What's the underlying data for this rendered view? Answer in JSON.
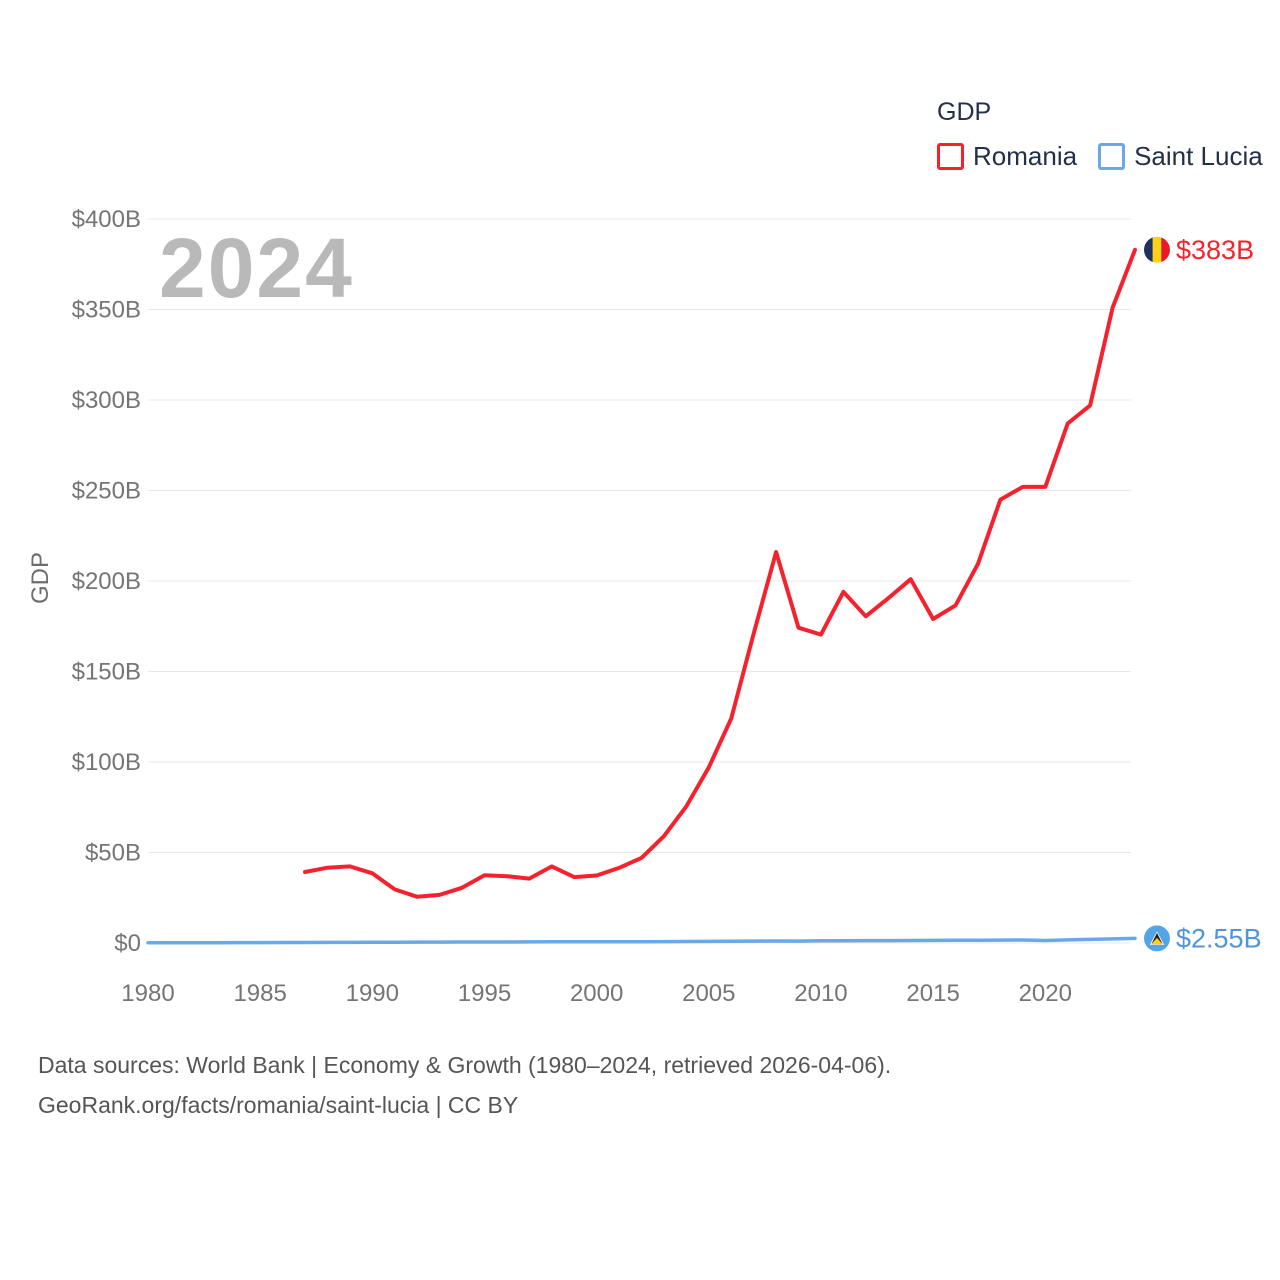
{
  "legend": {
    "title": "GDP",
    "series": [
      {
        "label": "Romania",
        "color": "#f5222d"
      },
      {
        "label": "Saint Lucia",
        "color": "#6ba9e6"
      }
    ]
  },
  "watermark": {
    "text": "2024"
  },
  "footer": {
    "line1": "Data sources: World Bank | Economy & Growth (1980–2024, retrieved 2026-04-06).",
    "line2": "GeoRank.org/facts/romania/saint-lucia | CC BY"
  },
  "colors": {
    "grid": "#e8e8e8",
    "tick_text": "#757575",
    "romania_line": "#f5222d",
    "romania_label": "#f5222d",
    "saint_lucia_line": "#6ba9e6",
    "saint_lucia_label": "#4f94dd"
  },
  "chart_data": {
    "type": "line",
    "title": "GDP",
    "xlabel": "",
    "ylabel": "GDP",
    "x_range": [
      1980,
      2024
    ],
    "ylim": [
      0,
      400
    ],
    "grid": "horizontal",
    "legend_position": "top-right",
    "current_year": "2024",
    "yticks": [
      {
        "value": 0,
        "label": "$0"
      },
      {
        "value": 50,
        "label": "$50B"
      },
      {
        "value": 100,
        "label": "$100B"
      },
      {
        "value": 150,
        "label": "$150B"
      },
      {
        "value": 200,
        "label": "$200B"
      },
      {
        "value": 250,
        "label": "$250B"
      },
      {
        "value": 300,
        "label": "$300B"
      },
      {
        "value": 350,
        "label": "$350B"
      },
      {
        "value": 400,
        "label": "$400B"
      }
    ],
    "xticks": [
      1980,
      1985,
      1990,
      1995,
      2000,
      2005,
      2010,
      2015,
      2020
    ],
    "series": [
      {
        "name": "Romania",
        "color": "#f5222d",
        "label_color": "#f5222d",
        "end_label": "$383B",
        "flag": "romania",
        "line_width": 4,
        "years": [
          1987,
          1988,
          1989,
          1990,
          1991,
          1992,
          1993,
          1994,
          1995,
          1996,
          1997,
          1998,
          1999,
          2000,
          2001,
          2002,
          2003,
          2004,
          2005,
          2006,
          2007,
          2008,
          2009,
          2010,
          2011,
          2012,
          2013,
          2014,
          2015,
          2016,
          2017,
          2018,
          2019,
          2020,
          2021,
          2022,
          2023,
          2024
        ],
        "values": [
          39.2,
          41.6,
          42.3,
          38.5,
          29.6,
          25.5,
          26.6,
          30.5,
          37.4,
          36.9,
          35.6,
          42.3,
          36.4,
          37.3,
          41.5,
          47.0,
          59.0,
          75.5,
          97.0,
          124.0,
          171.0,
          216.0,
          174.2,
          170.4,
          194.0,
          180.5,
          190.5,
          201.0,
          179.0,
          186.5,
          209.5,
          245.0,
          252.0,
          252.0,
          287.0,
          297.0,
          351.0,
          383.0
        ]
      },
      {
        "name": "Saint Lucia",
        "color": "#6ba9e6",
        "label_color": "#4f94dd",
        "end_label": "$2.55B",
        "flag": "saint-lucia",
        "line_width": 3.5,
        "years": [
          1980,
          1981,
          1982,
          1983,
          1984,
          1985,
          1986,
          1987,
          1988,
          1989,
          1990,
          1991,
          1992,
          1993,
          1994,
          1995,
          1996,
          1997,
          1998,
          1999,
          2000,
          2001,
          2002,
          2003,
          2004,
          2005,
          2006,
          2007,
          2008,
          2009,
          2010,
          2011,
          2012,
          2013,
          2014,
          2015,
          2016,
          2017,
          2018,
          2019,
          2020,
          2021,
          2022,
          2023,
          2024
        ],
        "values": [
          0.13,
          0.15,
          0.16,
          0.18,
          0.2,
          0.22,
          0.25,
          0.28,
          0.31,
          0.34,
          0.4,
          0.43,
          0.47,
          0.49,
          0.53,
          0.56,
          0.58,
          0.6,
          0.64,
          0.68,
          0.72,
          0.7,
          0.71,
          0.76,
          0.83,
          0.88,
          0.98,
          1.05,
          1.1,
          1.07,
          1.24,
          1.29,
          1.3,
          1.34,
          1.38,
          1.44,
          1.48,
          1.53,
          1.6,
          1.66,
          1.4,
          1.69,
          2.0,
          2.26,
          2.55
        ]
      }
    ]
  }
}
